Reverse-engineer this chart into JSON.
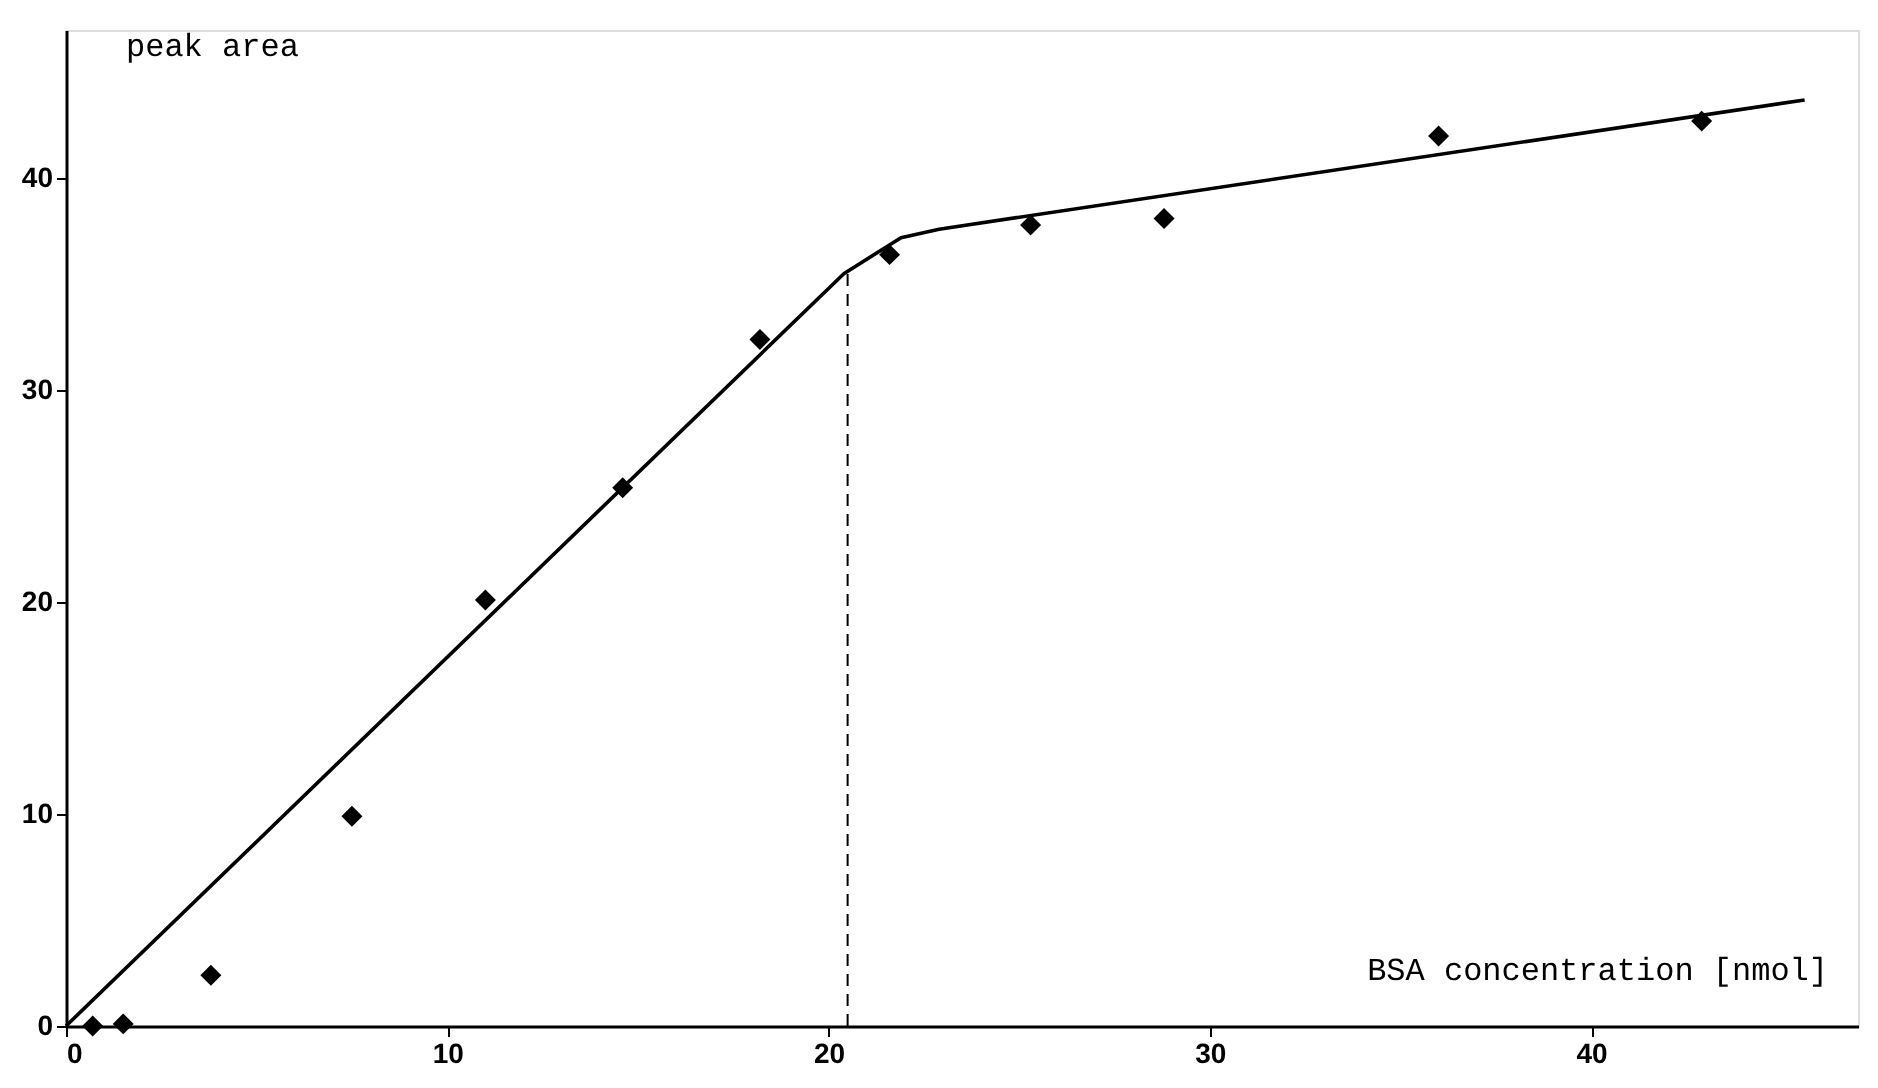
{
  "chart_data": {
    "type": "scatter",
    "xlabel": "BSA concentration [nmol]",
    "ylabel": "peak area",
    "xlim": [
      0,
      47
    ],
    "ylim": [
      0,
      47
    ],
    "xticks": [
      0,
      10,
      20,
      30,
      40
    ],
    "yticks": [
      0,
      10,
      20,
      30,
      40
    ],
    "grid": false,
    "series": [
      {
        "marker": "diamond",
        "color": "#000000",
        "x": [
          0.7,
          1.5,
          3.8,
          7.5,
          11.0,
          14.6,
          18.2,
          21.6,
          25.3,
          28.8,
          36.0,
          42.9
        ],
        "values": [
          0,
          0.1,
          2.4,
          9.9,
          20.1,
          25.4,
          32.4,
          36.4,
          37.8,
          38.1,
          42.0,
          42.7
        ]
      },
      {
        "type": "line",
        "marker": "none",
        "line_style": "solid",
        "color": "#000000",
        "x": [
          0,
          20.4,
          21.9,
          22.9,
          45.6
        ],
        "values": [
          0,
          35.5,
          37.2,
          37.6,
          43.7
        ]
      }
    ],
    "ref_lines": [
      {
        "axis": "x",
        "value": 20.5,
        "line_style": "dashed",
        "color": "#000000"
      }
    ]
  }
}
